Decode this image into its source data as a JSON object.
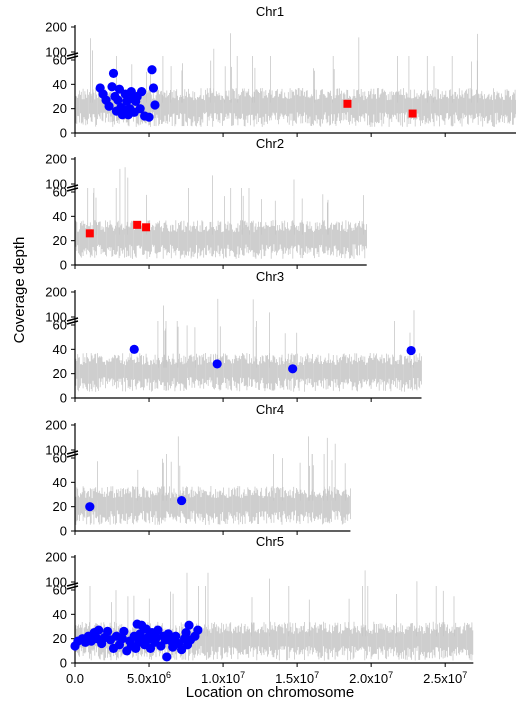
{
  "chart_data": {
    "type": "scatter",
    "ylabel": "Coverage depth",
    "xlabel": "Location on chromosome",
    "x_ticks": [
      {
        "value": 0,
        "label": "0.0"
      },
      {
        "value": 5000000,
        "label": "5.0x10",
        "exp": "6"
      },
      {
        "value": 10000000,
        "label": "1.0x10",
        "exp": "7"
      },
      {
        "value": 15000000,
        "label": "1.5x10",
        "exp": "7"
      },
      {
        "value": 20000000,
        "label": "2.0x10",
        "exp": "7"
      },
      {
        "value": 25000000,
        "label": "2.5x10",
        "exp": "7"
      }
    ],
    "y_ticks_lower": [
      "0",
      "20",
      "40",
      "60"
    ],
    "y_ticks_upper": [
      "100",
      "200"
    ],
    "y_lower_range": [
      0,
      60
    ],
    "y_upper_range": [
      100,
      200
    ],
    "broken_axis": true,
    "colors": {
      "coverage": "#c8c8c8",
      "blue": "#0000ff",
      "red": "#ff0000"
    },
    "panels": [
      {
        "title": "Chr1",
        "length": 30400000,
        "baseline": 25,
        "blue_points": [
          [
            1700000,
            37
          ],
          [
            1900000,
            32
          ],
          [
            2100000,
            27
          ],
          [
            2300000,
            22
          ],
          [
            2500000,
            38
          ],
          [
            2600000,
            49
          ],
          [
            2700000,
            30
          ],
          [
            2800000,
            18
          ],
          [
            2900000,
            27
          ],
          [
            3000000,
            36
          ],
          [
            3100000,
            21
          ],
          [
            3200000,
            15
          ],
          [
            3300000,
            19
          ],
          [
            3400000,
            32
          ],
          [
            3500000,
            26
          ],
          [
            3600000,
            15
          ],
          [
            3700000,
            20
          ],
          [
            3800000,
            34
          ],
          [
            3900000,
            28
          ],
          [
            4000000,
            17
          ],
          [
            4100000,
            26
          ],
          [
            4200000,
            30
          ],
          [
            4400000,
            20
          ],
          [
            4500000,
            34
          ],
          [
            4700000,
            14
          ],
          [
            5000000,
            13
          ],
          [
            5200000,
            52
          ],
          [
            5300000,
            37
          ],
          [
            5400000,
            23
          ]
        ],
        "red_points": [
          [
            18400000,
            24
          ],
          [
            22800000,
            16
          ]
        ]
      },
      {
        "title": "Chr2",
        "length": 19700000,
        "baseline": 25,
        "blue_points": [],
        "red_points": [
          [
            1000000,
            26
          ],
          [
            4200000,
            33
          ],
          [
            4800000,
            31
          ]
        ]
      },
      {
        "title": "Chr3",
        "length": 23400000,
        "baseline": 25,
        "blue_points": [
          [
            4000000,
            40
          ],
          [
            9600000,
            28
          ],
          [
            14700000,
            24
          ],
          [
            22700000,
            39
          ]
        ],
        "red_points": []
      },
      {
        "title": "Chr4",
        "length": 18600000,
        "baseline": 25,
        "blue_points": [
          [
            1000000,
            20
          ],
          [
            7200000,
            25
          ]
        ],
        "red_points": []
      },
      {
        "title": "Chr5",
        "length": 26900000,
        "baseline": 22,
        "blue_points": [
          [
            0,
            14
          ],
          [
            200000,
            18
          ],
          [
            500000,
            20
          ],
          [
            700000,
            17
          ],
          [
            900000,
            22
          ],
          [
            1100000,
            18
          ],
          [
            1300000,
            25
          ],
          [
            1500000,
            20
          ],
          [
            1600000,
            27
          ],
          [
            1800000,
            16
          ],
          [
            2000000,
            21
          ],
          [
            2200000,
            26
          ],
          [
            2400000,
            19
          ],
          [
            2600000,
            12
          ],
          [
            2800000,
            22
          ],
          [
            3000000,
            15
          ],
          [
            3200000,
            20
          ],
          [
            3300000,
            26
          ],
          [
            3500000,
            10
          ],
          [
            3700000,
            18
          ],
          [
            3800000,
            14
          ],
          [
            4000000,
            22
          ],
          [
            4100000,
            12
          ],
          [
            4200000,
            32
          ],
          [
            4300000,
            17
          ],
          [
            4400000,
            24
          ],
          [
            4500000,
            31
          ],
          [
            4600000,
            20
          ],
          [
            4700000,
            15
          ],
          [
            4800000,
            28
          ],
          [
            4900000,
            19
          ],
          [
            5000000,
            22
          ],
          [
            5100000,
            12
          ],
          [
            5200000,
            25
          ],
          [
            5400000,
            17
          ],
          [
            5500000,
            21
          ],
          [
            5600000,
            27
          ],
          [
            5800000,
            14
          ],
          [
            6000000,
            22
          ],
          [
            6100000,
            19
          ],
          [
            6200000,
            5
          ],
          [
            6300000,
            24
          ],
          [
            6500000,
            18
          ],
          [
            6600000,
            13
          ],
          [
            6800000,
            22
          ],
          [
            7000000,
            16
          ],
          [
            7200000,
            11
          ],
          [
            7400000,
            20
          ],
          [
            7500000,
            25
          ],
          [
            7600000,
            15
          ],
          [
            7700000,
            31
          ],
          [
            7800000,
            19
          ],
          [
            8100000,
            22
          ],
          [
            8300000,
            27
          ]
        ],
        "red_points": []
      }
    ]
  }
}
